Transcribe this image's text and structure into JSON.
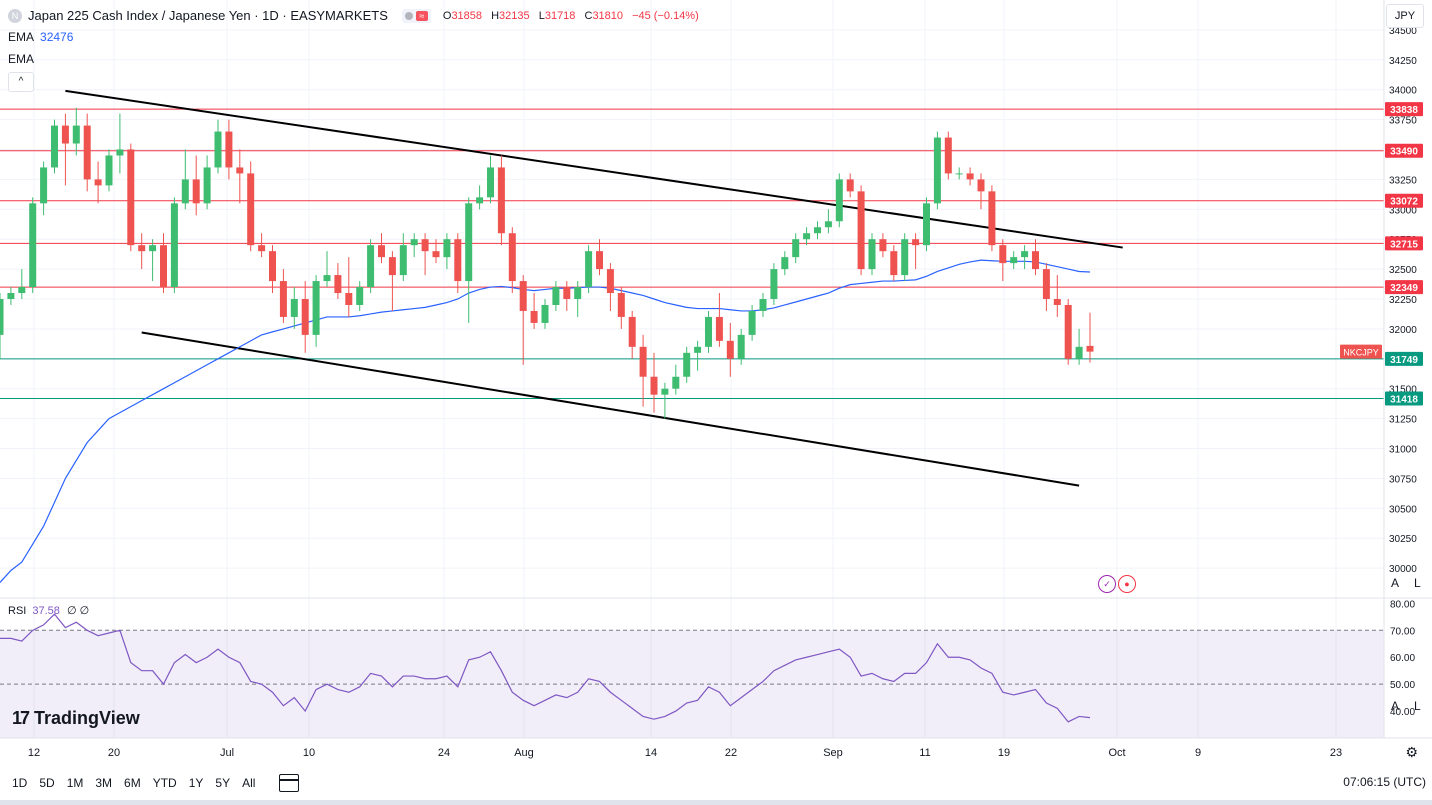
{
  "header": {
    "symbol_title": "Japan 225 Cash Index / Japanese Yen · 1D · EASYMARKETS",
    "open_label": "O",
    "open": "31858",
    "high_label": "H",
    "high": "32135",
    "low_label": "L",
    "low": "31718",
    "close_label": "C",
    "close": "31810",
    "change": "−45 (−0.14%)"
  },
  "indicators": {
    "ema1_name": "EMA",
    "ema1_value": "32476",
    "ema2_name": "EMA",
    "rsi_name": "RSI",
    "rsi_value": "37.58",
    "rsi_extra": "∅ ∅"
  },
  "currency": "JPY",
  "brand": "TradingView",
  "scale_buttons": {
    "auto": "A",
    "log": "L"
  },
  "time_ranges": [
    "1D",
    "5D",
    "1M",
    "3M",
    "6M",
    "YTD",
    "1Y",
    "5Y",
    "All"
  ],
  "clock": "07:06:15 (UTC)",
  "colors": {
    "up": "#26a69a",
    "up_fill": "#3ebc6f",
    "down": "#ef5350",
    "ema": "#2962ff",
    "rsi": "#7e57c2"
  },
  "icons": {
    "collapse": "chevron-up-icon",
    "calendar": "calendar-range-icon",
    "settings": "gear-icon"
  },
  "chart_data": {
    "type": "candlestick",
    "title": "Japan 225 Cash Index / Japanese Yen · 1D · EASYMARKETS",
    "price_axis_ticks": [
      30000,
      30250,
      30500,
      30750,
      31000,
      31250,
      31500,
      31750,
      32000,
      32250,
      32500,
      32750,
      33000,
      33250,
      33500,
      33750,
      34000,
      34250,
      34500
    ],
    "price_axis_labels": [
      "30000",
      "30250",
      "30500",
      "30750",
      "31000",
      "31250",
      "31500",
      "31750",
      "32000",
      "32250",
      "32500",
      "32750",
      "33000",
      "33250",
      "33500",
      "33750",
      "34000",
      "34250",
      "34500"
    ],
    "ylim": [
      29750,
      34750
    ],
    "time_axis_labels": [
      "12",
      "20",
      "Jul",
      "10",
      "24",
      "Aug",
      "14",
      "22",
      "Sep",
      "11",
      "19",
      "Oct",
      "9",
      "23"
    ],
    "horizontal_levels": [
      {
        "value": 33838,
        "label": "33838",
        "color": "#f23645"
      },
      {
        "value": 33490,
        "label": "33490",
        "color": "#f23645"
      },
      {
        "value": 33072,
        "label": "33072",
        "color": "#f23645"
      },
      {
        "value": 32715,
        "label": "32715",
        "color": "#f23645"
      },
      {
        "value": 32349,
        "label": "32349",
        "color": "#f23645"
      },
      {
        "value": 31749,
        "label": "31749",
        "color": "#089981"
      },
      {
        "value": 31418,
        "label": "31418",
        "color": "#089981"
      }
    ],
    "current_price_tag": "NKCJPY",
    "channel_lines": [
      {
        "from": {
          "bar": 6,
          "price": 33990
        },
        "to": {
          "bar": 103,
          "price": 32680
        }
      },
      {
        "from": {
          "bar": 13,
          "price": 31970
        },
        "to": {
          "bar": 99,
          "price": 30690
        }
      }
    ],
    "candles": [
      [
        31950,
        32300,
        31750,
        32250
      ],
      [
        32250,
        32350,
        32200,
        32300
      ],
      [
        32300,
        32500,
        32250,
        32350
      ],
      [
        32350,
        33100,
        32300,
        33050
      ],
      [
        33050,
        33400,
        32950,
        33350
      ],
      [
        33350,
        33750,
        33300,
        33700
      ],
      [
        33700,
        33800,
        33200,
        33550
      ],
      [
        33550,
        33850,
        33450,
        33700
      ],
      [
        33700,
        33800,
        33150,
        33250
      ],
      [
        33250,
        33400,
        33050,
        33200
      ],
      [
        33200,
        33500,
        33150,
        33450
      ],
      [
        33450,
        33800,
        33300,
        33500
      ],
      [
        33500,
        33550,
        32650,
        32700
      ],
      [
        32700,
        32800,
        32500,
        32650
      ],
      [
        32650,
        32750,
        32400,
        32700
      ],
      [
        32700,
        32800,
        32300,
        32350
      ],
      [
        32350,
        33100,
        32300,
        33050
      ],
      [
        33050,
        33500,
        33000,
        33250
      ],
      [
        33250,
        33450,
        32950,
        33050
      ],
      [
        33050,
        33450,
        33000,
        33350
      ],
      [
        33350,
        33750,
        33300,
        33650
      ],
      [
        33650,
        33750,
        33250,
        33350
      ],
      [
        33350,
        33500,
        33050,
        33300
      ],
      [
        33300,
        33400,
        32650,
        32700
      ],
      [
        32700,
        32800,
        32600,
        32650
      ],
      [
        32650,
        32700,
        32300,
        32400
      ],
      [
        32400,
        32500,
        32050,
        32100
      ],
      [
        32100,
        32350,
        32000,
        32250
      ],
      [
        32250,
        32400,
        31800,
        31950
      ],
      [
        31950,
        32450,
        31850,
        32400
      ],
      [
        32400,
        32650,
        32350,
        32450
      ],
      [
        32450,
        32550,
        32250,
        32300
      ],
      [
        32300,
        32600,
        32100,
        32200
      ],
      [
        32200,
        32400,
        32150,
        32350
      ],
      [
        32350,
        32750,
        32300,
        32700
      ],
      [
        32700,
        32800,
        32550,
        32600
      ],
      [
        32600,
        32650,
        32150,
        32450
      ],
      [
        32450,
        32800,
        32400,
        32700
      ],
      [
        32700,
        32800,
        32600,
        32750
      ],
      [
        32750,
        32800,
        32450,
        32650
      ],
      [
        32650,
        32750,
        32550,
        32600
      ],
      [
        32600,
        32800,
        32500,
        32750
      ],
      [
        32750,
        32800,
        32300,
        32400
      ],
      [
        32400,
        33100,
        32050,
        33050
      ],
      [
        33050,
        33200,
        33000,
        33100
      ],
      [
        33100,
        33450,
        33050,
        33350
      ],
      [
        33350,
        33450,
        32700,
        32800
      ],
      [
        32800,
        32850,
        32300,
        32400
      ],
      [
        32400,
        32450,
        31700,
        32150
      ],
      [
        32150,
        32300,
        32000,
        32050
      ],
      [
        32050,
        32250,
        32000,
        32200
      ],
      [
        32200,
        32400,
        32150,
        32350
      ],
      [
        32350,
        32400,
        32150,
        32250
      ],
      [
        32250,
        32400,
        32100,
        32350
      ],
      [
        32350,
        32700,
        32300,
        32650
      ],
      [
        32650,
        32750,
        32450,
        32500
      ],
      [
        32500,
        32550,
        32150,
        32300
      ],
      [
        32300,
        32350,
        32000,
        32100
      ],
      [
        32100,
        32150,
        31750,
        31850
      ],
      [
        31850,
        31950,
        31350,
        31600
      ],
      [
        31600,
        31800,
        31300,
        31450
      ],
      [
        31450,
        31550,
        31250,
        31500
      ],
      [
        31500,
        31700,
        31450,
        31600
      ],
      [
        31600,
        31850,
        31550,
        31800
      ],
      [
        31800,
        31900,
        31650,
        31850
      ],
      [
        31850,
        32150,
        31800,
        32100
      ],
      [
        32100,
        32300,
        31850,
        31900
      ],
      [
        31900,
        32050,
        31600,
        31750
      ],
      [
        31750,
        32000,
        31700,
        31950
      ],
      [
        31950,
        32200,
        31900,
        32150
      ],
      [
        32150,
        32300,
        32100,
        32250
      ],
      [
        32250,
        32550,
        32200,
        32500
      ],
      [
        32500,
        32650,
        32450,
        32600
      ],
      [
        32600,
        32800,
        32550,
        32750
      ],
      [
        32750,
        32850,
        32700,
        32800
      ],
      [
        32800,
        32900,
        32750,
        32850
      ],
      [
        32850,
        33000,
        32800,
        32900
      ],
      [
        32900,
        33300,
        32850,
        33250
      ],
      [
        33250,
        33300,
        33100,
        33150
      ],
      [
        33150,
        33200,
        32450,
        32500
      ],
      [
        32500,
        32800,
        32450,
        32750
      ],
      [
        32750,
        32800,
        32600,
        32650
      ],
      [
        32650,
        32700,
        32400,
        32450
      ],
      [
        32450,
        32800,
        32400,
        32750
      ],
      [
        32750,
        32800,
        32500,
        32700
      ],
      [
        32700,
        33100,
        32650,
        33050
      ],
      [
        33050,
        33650,
        33000,
        33600
      ],
      [
        33600,
        33650,
        33250,
        33300
      ],
      [
        33300,
        33350,
        33250,
        33300
      ],
      [
        33300,
        33350,
        33200,
        33250
      ],
      [
        33250,
        33300,
        33000,
        33150
      ],
      [
        33150,
        33200,
        32650,
        32700
      ],
      [
        32700,
        32750,
        32400,
        32550
      ],
      [
        32550,
        32650,
        32500,
        32600
      ],
      [
        32600,
        32700,
        32500,
        32650
      ],
      [
        32650,
        32750,
        32450,
        32500
      ],
      [
        32500,
        32550,
        32150,
        32250
      ],
      [
        32250,
        32450,
        32100,
        32200
      ],
      [
        32200,
        32250,
        31700,
        31750
      ],
      [
        31750,
        32000,
        31700,
        31850
      ],
      [
        31858,
        32135,
        31718,
        31810
      ]
    ],
    "ema_series": [
      29880,
      29980,
      30050,
      30200,
      30350,
      30550,
      30750,
      30900,
      31050,
      31150,
      31250,
      31300,
      31350,
      31400,
      31450,
      31500,
      31550,
      31600,
      31650,
      31700,
      31750,
      31800,
      31850,
      31900,
      31950,
      31975,
      32000,
      32025,
      32050,
      32075,
      32100,
      32100,
      32100,
      32110,
      32125,
      32140,
      32150,
      32160,
      32170,
      32180,
      32200,
      32220,
      32250,
      32300,
      32330,
      32350,
      32355,
      32345,
      32330,
      32320,
      32330,
      32340,
      32340,
      32345,
      32350,
      32350,
      32340,
      32320,
      32300,
      32280,
      32250,
      32220,
      32200,
      32180,
      32170,
      32170,
      32170,
      32160,
      32150,
      32150,
      32160,
      32175,
      32200,
      32225,
      32250,
      32275,
      32300,
      32340,
      32370,
      32380,
      32390,
      32400,
      32400,
      32405,
      32410,
      32440,
      32480,
      32510,
      32540,
      32560,
      32575,
      32570,
      32565,
      32565,
      32565,
      32560,
      32540,
      32520,
      32500,
      32480,
      32476
    ],
    "rsi_series": [
      67,
      67,
      66,
      70,
      72,
      76,
      71,
      73,
      70,
      68,
      69,
      70,
      58,
      55,
      55,
      50,
      58,
      61,
      58,
      60,
      63,
      60,
      58,
      51,
      50,
      47,
      42,
      45,
      40,
      48,
      50,
      48,
      47,
      49,
      54,
      53,
      49,
      53,
      53,
      52,
      52,
      53,
      49,
      59,
      60,
      62,
      55,
      47,
      44,
      42,
      44,
      46,
      45,
      47,
      52,
      51,
      47,
      44,
      41,
      38,
      37,
      38,
      40,
      43,
      44,
      49,
      47,
      42,
      45,
      48,
      51,
      55,
      57,
      59,
      60,
      61,
      62,
      63,
      60,
      53,
      54,
      52,
      51,
      54,
      54,
      58,
      65,
      60,
      60,
      59,
      56,
      54,
      47,
      46,
      47,
      48,
      43,
      41,
      36,
      38,
      37.58
    ],
    "rsi_axis_ticks": [
      40,
      50,
      60,
      70,
      80
    ],
    "rsi_axis_labels": [
      "40.00",
      "50.00",
      "60.00",
      "70.00",
      "80.00"
    ],
    "rsi_ylim": [
      30,
      82
    ],
    "rsi_levels": [
      70,
      50,
      30
    ]
  }
}
